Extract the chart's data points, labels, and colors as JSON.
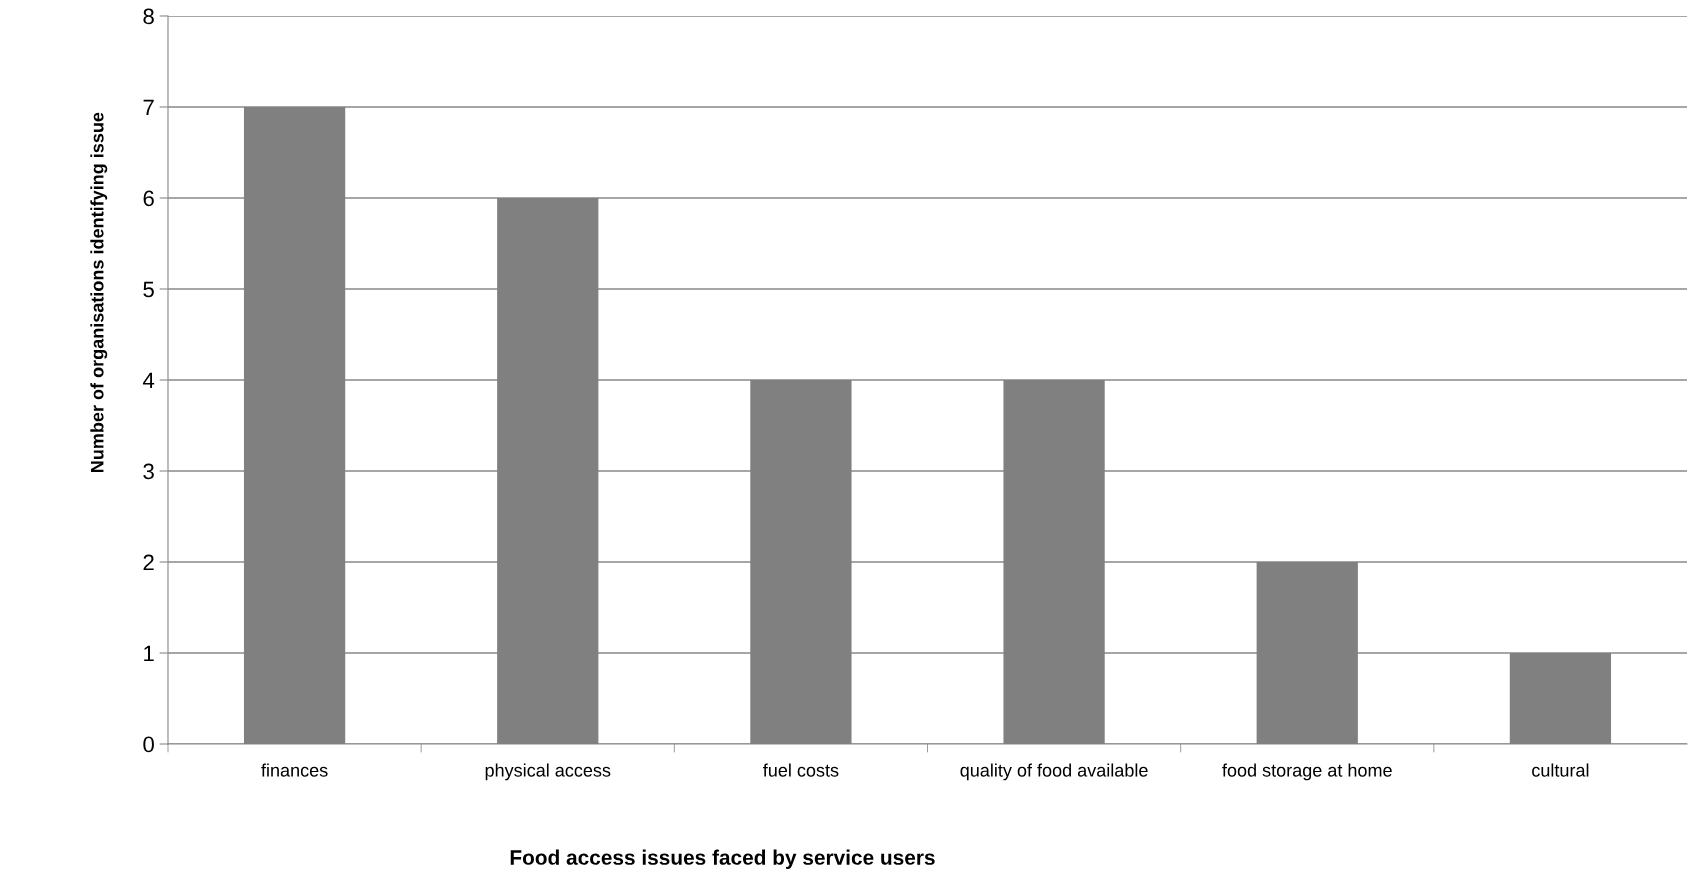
{
  "chart_data": {
    "type": "bar",
    "categories": [
      "finances",
      "physical access",
      "fuel costs",
      "quality of food available",
      "food storage at home",
      "cultural"
    ],
    "values": [
      7,
      6,
      4,
      4,
      2,
      1
    ],
    "color": "#808080",
    "xlabel": "Food access issues faced by service users",
    "ylabel": "Number of organisations identifying issue",
    "ylim": [
      0,
      8
    ],
    "yticks": [
      0,
      1,
      2,
      3,
      4,
      5,
      6,
      7,
      8
    ],
    "grid": "y"
  }
}
